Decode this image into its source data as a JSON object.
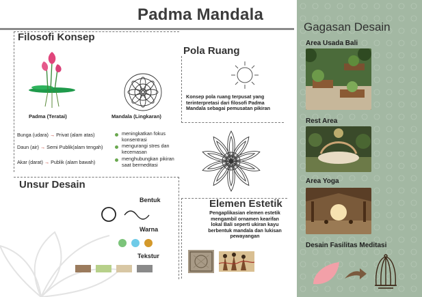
{
  "page": {
    "title": "Padma Mandala"
  },
  "filosofi": {
    "heading": "Filosofi Konsep",
    "padma_label": "Padma (Teratai)",
    "mandala_label": "Mandala (Lingkaran)",
    "rows": [
      {
        "from": "Bunga (udara)",
        "to": "Privat (alam atas)"
      },
      {
        "from": "Daun (air)",
        "to": "Semi Publik(alam tengah)"
      },
      {
        "from": "Akar (darat)",
        "to": "Publik (alam bawah)"
      }
    ],
    "benefits": [
      "meningkatkan fokus konsentrasi",
      "mengurangi stres dan kecemasan",
      "menghubungkan pikiran saat bermeditasi"
    ]
  },
  "pola_ruang": {
    "heading": "Pola Ruang",
    "description": "Konsep pola ruang terpusat yang terinterpretasi dari filosofi Padma Mandala sebagai pemusatan pikiran"
  },
  "unsur_desain": {
    "heading": "Unsur Desain",
    "bentuk_label": "Bentuk",
    "warna_label": "Warna",
    "tekstur_label": "Tekstur",
    "warna_colors": [
      "#7cc47a",
      "#6fcbe8",
      "#d4992b"
    ],
    "tekstur_colors": [
      "#9b7b5d",
      "#b7d08a",
      "#d8c7a4",
      "#8a8a8a"
    ]
  },
  "elemen_estetik": {
    "heading": "Elemen Estetik",
    "description": "Pengaplikasian elemen estetik mengambil ornamen kearifan lokal Bali seperti ukiran kayu berbentuk mandala dan lukisan pewayangan"
  },
  "gagasan": {
    "title": "Gagasan Desain",
    "items": [
      {
        "label": "Area Usada Bali"
      },
      {
        "label": "Rest Area"
      },
      {
        "label": "Area Yoga"
      },
      {
        "label": "Desain Fasilitas Meditasi"
      }
    ],
    "panel_color": "#a3b8a3"
  }
}
